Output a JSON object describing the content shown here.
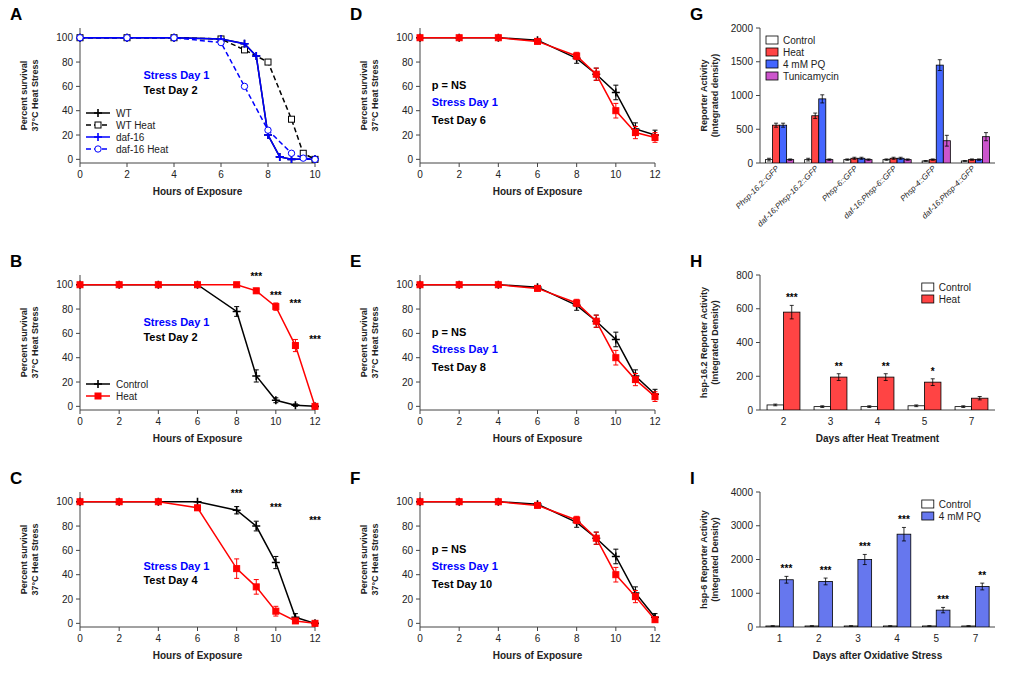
{
  "chart_data": [
    {
      "type": "line",
      "title": "A",
      "xlabel": "Hours of Exposure",
      "ylabel": "Percent survival\n37°C Heat Stress",
      "xlim": [
        0,
        10
      ],
      "xticks": [
        0,
        2,
        4,
        6,
        8,
        10
      ],
      "ylim": [
        -3,
        108
      ],
      "yticks": [
        0,
        20,
        40,
        60,
        80,
        100
      ],
      "legend": "lower left",
      "annotations": [
        {
          "text": "Stress Day 1",
          "color": "blue"
        },
        {
          "text": "Test Day 2"
        }
      ],
      "series": [
        {
          "name": "WT",
          "color": "black",
          "line_style": "solid",
          "marker": "plus",
          "x": [
            0,
            2,
            4,
            6,
            7,
            7.5,
            8,
            8.5,
            9,
            10
          ],
          "values": [
            100,
            100,
            100,
            99,
            95,
            85,
            20,
            2,
            0,
            0
          ]
        },
        {
          "name": "WT Heat",
          "color": "black",
          "line_style": "dashed",
          "marker": "square",
          "x": [
            0,
            2,
            4,
            6,
            7,
            8,
            9,
            9.5,
            10
          ],
          "values": [
            100,
            100,
            100,
            99,
            90,
            80,
            33,
            5,
            0
          ]
        },
        {
          "name": "daf-16",
          "color": "blue",
          "line_style": "solid",
          "marker": "plus",
          "x": [
            0,
            2,
            4,
            6,
            7,
            7.5,
            8,
            8.5,
            9,
            10
          ],
          "values": [
            100,
            100,
            100,
            99,
            95,
            85,
            20,
            2,
            0,
            0
          ]
        },
        {
          "name": "daf-16 Heat",
          "color": "blue",
          "line_style": "dashed",
          "marker": "circle",
          "x": [
            0,
            2,
            4,
            6,
            7,
            8,
            9,
            9.5,
            10
          ],
          "values": [
            100,
            100,
            100,
            96,
            60,
            24,
            5,
            1,
            0
          ]
        }
      ]
    },
    {
      "type": "line",
      "title": "B",
      "xlabel": "Hours of Exposure",
      "ylabel": "Percent survival\n37°C Heat Stress",
      "xlim": [
        0,
        12
      ],
      "xticks": [
        0,
        2,
        4,
        6,
        8,
        10,
        12
      ],
      "ylim": [
        -3,
        108
      ],
      "yticks": [
        0,
        20,
        40,
        60,
        80,
        100
      ],
      "legend": "lower left",
      "annotations": [
        {
          "text": "Stress Day 1",
          "color": "blue"
        },
        {
          "text": "Test Day 2"
        },
        {
          "text": "***",
          "x": 9,
          "y": 104
        },
        {
          "text": "***",
          "x": 10,
          "y": 88
        },
        {
          "text": "***",
          "x": 11,
          "y": 82
        },
        {
          "text": "***",
          "x": 12,
          "y": 52
        }
      ],
      "series": [
        {
          "name": "Control",
          "color": "black",
          "line_style": "solid",
          "marker": "plus",
          "x": [
            0,
            2,
            4,
            6,
            8,
            9,
            10,
            11,
            12
          ],
          "values": [
            100,
            100,
            100,
            100,
            78,
            25,
            5,
            1,
            0
          ],
          "errors": [
            0,
            0,
            0,
            0,
            4,
            5,
            2,
            1,
            0
          ]
        },
        {
          "name": "Heat",
          "color": "red",
          "line_style": "solid",
          "marker": "square",
          "x": [
            0,
            2,
            4,
            6,
            8,
            9,
            10,
            11,
            12
          ],
          "values": [
            100,
            100,
            100,
            100,
            100,
            95,
            82,
            50,
            0
          ],
          "errors": [
            0,
            0,
            0,
            0,
            0,
            2,
            3,
            5,
            0
          ]
        }
      ]
    },
    {
      "type": "line",
      "title": "C",
      "xlabel": "Hours of Exposure",
      "ylabel": "Percent survival\n37°C Heat Stress",
      "xlim": [
        0,
        12
      ],
      "xticks": [
        0,
        2,
        4,
        6,
        8,
        10,
        12
      ],
      "ylim": [
        -3,
        108
      ],
      "yticks": [
        0,
        20,
        40,
        60,
        80,
        100
      ],
      "annotations": [
        {
          "text": "Stress Day 1",
          "color": "blue"
        },
        {
          "text": "Test Day 4"
        },
        {
          "text": "***",
          "x": 8,
          "y": 104
        },
        {
          "text": "***",
          "x": 10,
          "y": 92
        },
        {
          "text": "***",
          "x": 12,
          "y": 82
        }
      ],
      "series": [
        {
          "color": "black",
          "line_style": "solid",
          "marker": "plus",
          "x": [
            0,
            2,
            4,
            6,
            8,
            9,
            10,
            11,
            12
          ],
          "values": [
            100,
            100,
            100,
            100,
            93,
            80,
            50,
            5,
            0
          ],
          "errors": [
            0,
            0,
            0,
            0,
            3,
            4,
            5,
            3,
            0
          ]
        },
        {
          "color": "red",
          "line_style": "solid",
          "marker": "square",
          "x": [
            0,
            2,
            4,
            6,
            8,
            9,
            10,
            11,
            12
          ],
          "values": [
            100,
            100,
            100,
            95,
            45,
            30,
            10,
            2,
            0
          ],
          "errors": [
            0,
            0,
            0,
            2,
            8,
            6,
            4,
            2,
            0
          ]
        }
      ]
    },
    {
      "type": "line",
      "title": "D",
      "xlabel": "Hours of Exposure",
      "ylabel": "Percent survival\n37°C Heat Stress",
      "xlim": [
        0,
        12
      ],
      "xticks": [
        0,
        2,
        4,
        6,
        8,
        10,
        12
      ],
      "ylim": [
        -3,
        108
      ],
      "yticks": [
        0,
        20,
        40,
        60,
        80,
        100
      ],
      "annotations": [
        {
          "text": "p = NS"
        },
        {
          "text": "Stress Day 1",
          "color": "blue"
        },
        {
          "text": "Test Day 6"
        }
      ],
      "series": [
        {
          "color": "black",
          "line_style": "solid",
          "marker": "plus",
          "x": [
            0,
            2,
            4,
            6,
            8,
            9,
            10,
            11,
            12
          ],
          "values": [
            100,
            100,
            100,
            98,
            83,
            70,
            55,
            25,
            20
          ],
          "errors": [
            0,
            0,
            0,
            1,
            4,
            5,
            6,
            5,
            4
          ]
        },
        {
          "color": "red",
          "line_style": "solid",
          "marker": "square",
          "x": [
            0,
            2,
            4,
            6,
            8,
            9,
            10,
            11,
            12
          ],
          "values": [
            100,
            100,
            100,
            97,
            85,
            70,
            40,
            22,
            18
          ],
          "errors": [
            0,
            0,
            0,
            1,
            3,
            5,
            6,
            5,
            4
          ]
        }
      ]
    },
    {
      "type": "line",
      "title": "E",
      "xlabel": "Hours of Exposure",
      "ylabel": "Percent survival\n37°C Heat Stress",
      "xlim": [
        0,
        12
      ],
      "xticks": [
        0,
        2,
        4,
        6,
        8,
        10,
        12
      ],
      "ylim": [
        -3,
        108
      ],
      "yticks": [
        0,
        20,
        40,
        60,
        80,
        100
      ],
      "annotations": [
        {
          "text": "p = NS"
        },
        {
          "text": "Stress Day 1",
          "color": "blue"
        },
        {
          "text": "Test Day 8"
        }
      ],
      "series": [
        {
          "color": "black",
          "line_style": "solid",
          "marker": "plus",
          "x": [
            0,
            2,
            4,
            6,
            8,
            9,
            10,
            11,
            12
          ],
          "values": [
            100,
            100,
            100,
            98,
            83,
            70,
            55,
            25,
            10
          ],
          "errors": [
            0,
            0,
            0,
            1,
            4,
            5,
            6,
            5,
            4
          ]
        },
        {
          "color": "red",
          "line_style": "solid",
          "marker": "square",
          "x": [
            0,
            2,
            4,
            6,
            8,
            9,
            10,
            11,
            12
          ],
          "values": [
            100,
            100,
            100,
            97,
            85,
            70,
            40,
            22,
            8
          ],
          "errors": [
            0,
            0,
            0,
            1,
            3,
            5,
            6,
            5,
            4
          ]
        }
      ]
    },
    {
      "type": "line",
      "title": "F",
      "xlabel": "Hours of Exposure",
      "ylabel": "Percent survival\n37°C Heat Stress",
      "xlim": [
        0,
        12
      ],
      "xticks": [
        0,
        2,
        4,
        6,
        8,
        10,
        12
      ],
      "ylim": [
        -3,
        108
      ],
      "yticks": [
        0,
        20,
        40,
        60,
        80,
        100
      ],
      "annotations": [
        {
          "text": "p = NS"
        },
        {
          "text": "Stress Day 1",
          "color": "blue"
        },
        {
          "text": "Test Day 10"
        }
      ],
      "series": [
        {
          "color": "black",
          "line_style": "solid",
          "marker": "plus",
          "x": [
            0,
            2,
            4,
            6,
            8,
            9,
            10,
            11,
            12
          ],
          "values": [
            100,
            100,
            100,
            98,
            83,
            70,
            55,
            25,
            5
          ],
          "errors": [
            0,
            0,
            0,
            1,
            4,
            5,
            6,
            5,
            3
          ]
        },
        {
          "color": "red",
          "line_style": "solid",
          "marker": "square",
          "x": [
            0,
            2,
            4,
            6,
            8,
            9,
            10,
            11,
            12
          ],
          "values": [
            100,
            100,
            100,
            97,
            85,
            70,
            40,
            22,
            3
          ],
          "errors": [
            0,
            0,
            0,
            1,
            3,
            5,
            6,
            5,
            2
          ]
        }
      ]
    },
    {
      "type": "bar",
      "title": "G",
      "ylabel": "Reporter Activity\n(Integrated density)",
      "categories": [
        "Phsp-16.2::GFP",
        "daf-16;Phsp-16.2::GFP",
        "Phsp-6::GFP",
        "daf-16;Phsp-6::GFP",
        "Phsp-4::GFP",
        "daf-16;Phsp-4::GFP"
      ],
      "ylim": [
        0,
        2000
      ],
      "yticks": [
        0,
        500,
        1000,
        1500,
        2000
      ],
      "legend": "upper left",
      "series": [
        {
          "name": "Control",
          "color": "white",
          "values": [
            50,
            50,
            50,
            50,
            30,
            30
          ],
          "errors": [
            20,
            20,
            10,
            10,
            5,
            5
          ]
        },
        {
          "name": "Heat",
          "color": "#FF4444",
          "values": [
            560,
            700,
            70,
            70,
            50,
            50
          ],
          "errors": [
            30,
            40,
            15,
            15,
            10,
            10
          ]
        },
        {
          "name": "4 mM PQ",
          "color": "#4466FF",
          "values": [
            560,
            950,
            70,
            70,
            1450,
            50
          ],
          "errors": [
            30,
            60,
            15,
            15,
            80,
            10
          ]
        },
        {
          "name": "Tunicamycin",
          "color": "#CC55CC",
          "values": [
            50,
            50,
            50,
            50,
            330,
            390
          ],
          "errors": [
            10,
            10,
            10,
            10,
            80,
            60
          ]
        }
      ]
    },
    {
      "type": "bar",
      "title": "H",
      "xlabel": "Days after Heat Treatment",
      "ylabel": "hsp-16.2 Reporter Activity\n(Integrated Density)",
      "categories": [
        2,
        3,
        4,
        5,
        7
      ],
      "ylim": [
        0,
        800
      ],
      "yticks": [
        0,
        200,
        400,
        600,
        800
      ],
      "legend": "upper right",
      "series": [
        {
          "name": "Control",
          "color": "white",
          "values": [
            30,
            20,
            20,
            25,
            20
          ],
          "errors": [
            5,
            5,
            5,
            5,
            5
          ]
        },
        {
          "name": "Heat",
          "color": "#FF4444",
          "values": [
            580,
            195,
            195,
            165,
            70
          ],
          "errors": [
            40,
            20,
            20,
            20,
            10
          ],
          "stars": [
            "***",
            "**",
            "**",
            "*",
            null
          ]
        }
      ]
    },
    {
      "type": "bar",
      "title": "I",
      "xlabel": "Days after Oxidative Stress",
      "ylabel": "hsp-6 Reporter Activity\n(Integrated Density)",
      "categories": [
        1,
        2,
        3,
        4,
        5,
        7
      ],
      "ylim": [
        0,
        4000
      ],
      "yticks": [
        0,
        1000,
        2000,
        3000,
        4000
      ],
      "legend": "upper right",
      "series": [
        {
          "name": "Control",
          "color": "white",
          "values": [
            30,
            30,
            30,
            30,
            30,
            30
          ],
          "errors": [
            5,
            5,
            5,
            5,
            5,
            5
          ]
        },
        {
          "name": "4 mM PQ",
          "color": "#6677EE",
          "values": [
            1400,
            1350,
            2000,
            2750,
            500,
            1200
          ],
          "errors": [
            100,
            100,
            150,
            200,
            80,
            100
          ],
          "stars": [
            "***",
            "***",
            "***",
            "***",
            "***",
            "**"
          ]
        }
      ]
    }
  ]
}
